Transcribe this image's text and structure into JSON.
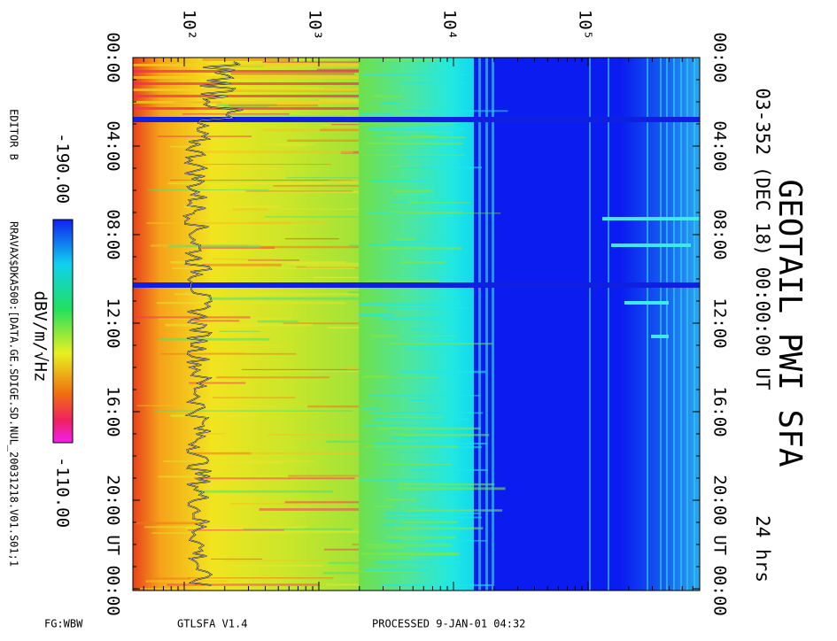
{
  "header": {
    "title": "GEOTAIL PWI SFA",
    "subtitle": "03-352 (DEC 18) 00:00:00 UT",
    "duration": "24 hrs"
  },
  "frequency_axis": {
    "labels": [
      "10²",
      "10³",
      "10⁴",
      "10⁵"
    ]
  },
  "time_axis": {
    "labels": [
      "00:00",
      "04:00",
      "08:00",
      "12:00",
      "16:00",
      "20:00",
      "UT 00:00"
    ]
  },
  "colorbar": {
    "min_label": "-190.00",
    "max_label": "-110.00",
    "unit": "dBV/m/√Hz"
  },
  "side_notes": {
    "editor": "EDITOR B",
    "file": "RRAVAX$DKA500:[DATA.GE.SDIGE.SD.NUL_20031218.V01.S01;1"
  },
  "footer": {
    "mode": "FG:WBW",
    "program": "GTLSFA   V1.4",
    "processed": "PROCESSED   9-JAN-01   04:32"
  }
}
